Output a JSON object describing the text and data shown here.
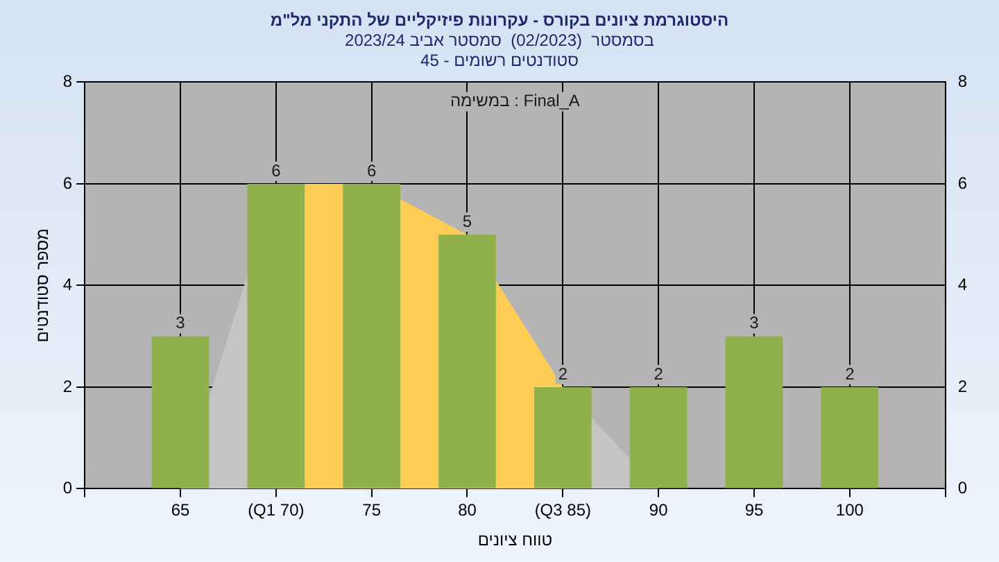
{
  "chart_data": {
    "type": "bar",
    "title": "היסטוגרמת ציונים בקורס - עקרונות פיזיקליים של התקני מל\"מ",
    "subtitle": "בסמסטר  (02/2023)  סמסטר אביב 2023/24\nסטודנטים רשומים - 45",
    "xlabel": "טווח ציונים",
    "ylabel": "מספר סטודנטים",
    "annotations": [
      "במשימה : Final_A"
    ],
    "categories": [
      null,
      "65",
      "(Q1 70)",
      "75",
      "80",
      "(Q3 85)",
      "90",
      "95",
      "100",
      null
    ],
    "series": [
      {
        "type": "area",
        "color": "#c4c4c4",
        "values": [
          null,
          0,
          6,
          null,
          null,
          2,
          0,
          0,
          0,
          null
        ]
      },
      {
        "type": "area",
        "color": "#ffcc55",
        "values": [
          null,
          null,
          6,
          6,
          5,
          2,
          null,
          null,
          null,
          null
        ]
      },
      {
        "type": "bar",
        "color": "#8fb04a",
        "values": [
          null,
          3,
          6,
          6,
          5,
          2,
          2,
          3,
          2,
          null
        ],
        "value_labels": [
          null,
          "3",
          "6",
          "6",
          "5",
          "2",
          "2",
          "3",
          "2",
          null
        ]
      }
    ],
    "ylim": [
      0,
      8
    ],
    "yticks": [
      0,
      2,
      4,
      6,
      8
    ],
    "y2lim": [
      0,
      8
    ],
    "y2ticks": [
      0,
      2,
      4,
      6,
      8
    ],
    "grid": true,
    "legend": false
  }
}
